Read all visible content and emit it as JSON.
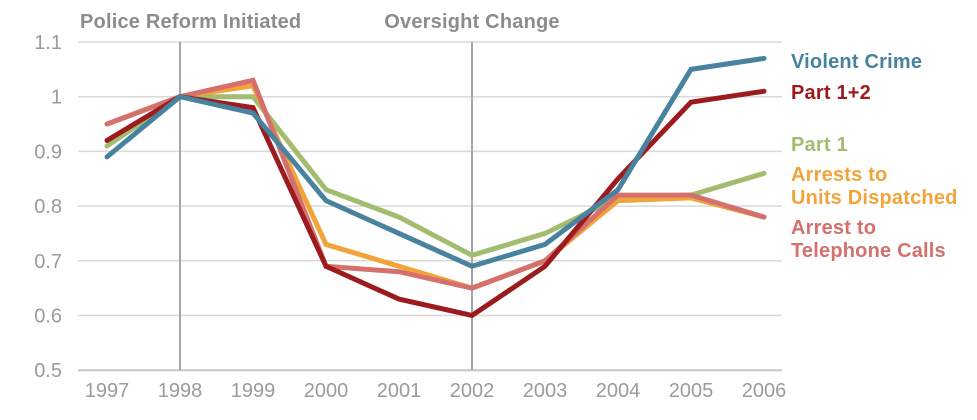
{
  "chart_data": {
    "type": "line",
    "x": [
      1997,
      1998,
      1999,
      2000,
      2001,
      2002,
      2003,
      2004,
      2005,
      2006
    ],
    "index_base_note": "all series equal 1.0 in 1998",
    "series": [
      {
        "name": "Violent Crime",
        "color": "#47829e",
        "values": [
          0.89,
          1.0,
          0.97,
          0.81,
          0.75,
          0.69,
          0.73,
          0.83,
          1.05,
          1.07
        ]
      },
      {
        "name": "Part 1+2",
        "color": "#9c1b1e",
        "values": [
          0.92,
          1.0,
          0.98,
          0.69,
          0.63,
          0.6,
          0.69,
          0.85,
          0.99,
          1.01
        ]
      },
      {
        "name": "Part 1",
        "color": "#a2bc70",
        "values": [
          0.91,
          1.0,
          1.0,
          0.83,
          0.78,
          0.71,
          0.75,
          0.815,
          0.82,
          0.86
        ]
      },
      {
        "name": "Arrests to\nUnits Dispatched",
        "color": "#f2a43a",
        "values": [
          0.95,
          1.0,
          1.02,
          0.73,
          0.69,
          0.65,
          0.7,
          0.81,
          0.815,
          0.78
        ]
      },
      {
        "name": "Arrest to\nTelephone Calls",
        "color": "#d4716c",
        "values": [
          0.95,
          1.0,
          1.03,
          0.69,
          0.68,
          0.65,
          0.7,
          0.82,
          0.82,
          0.78
        ]
      }
    ],
    "draw_order": [
      2,
      3,
      4,
      1,
      0
    ],
    "y_ticks": [
      {
        "value": 1.1,
        "label": "1.1"
      },
      {
        "value": 1.0,
        "label": "1"
      },
      {
        "value": 0.9,
        "label": "0.9"
      },
      {
        "value": 0.8,
        "label": "0.8"
      },
      {
        "value": 0.7,
        "label": "0.7"
      },
      {
        "value": 0.6,
        "label": "0.6"
      },
      {
        "value": 0.5,
        "label": "0.5"
      }
    ],
    "ylim": [
      0.5,
      1.1
    ],
    "grid": true,
    "legend_position": "right",
    "annotations": [
      {
        "label": "Police Reform Initiated",
        "year": 1998
      },
      {
        "label": "Oversight Change",
        "year": 2002
      }
    ],
    "colors": {
      "gridline": "#d9d9d9",
      "axis_line": "#c7c7c7",
      "event_line": "#a6a6a6",
      "tick_text": "#9b9b9b",
      "annotation_text": "#8c8c8c"
    }
  }
}
